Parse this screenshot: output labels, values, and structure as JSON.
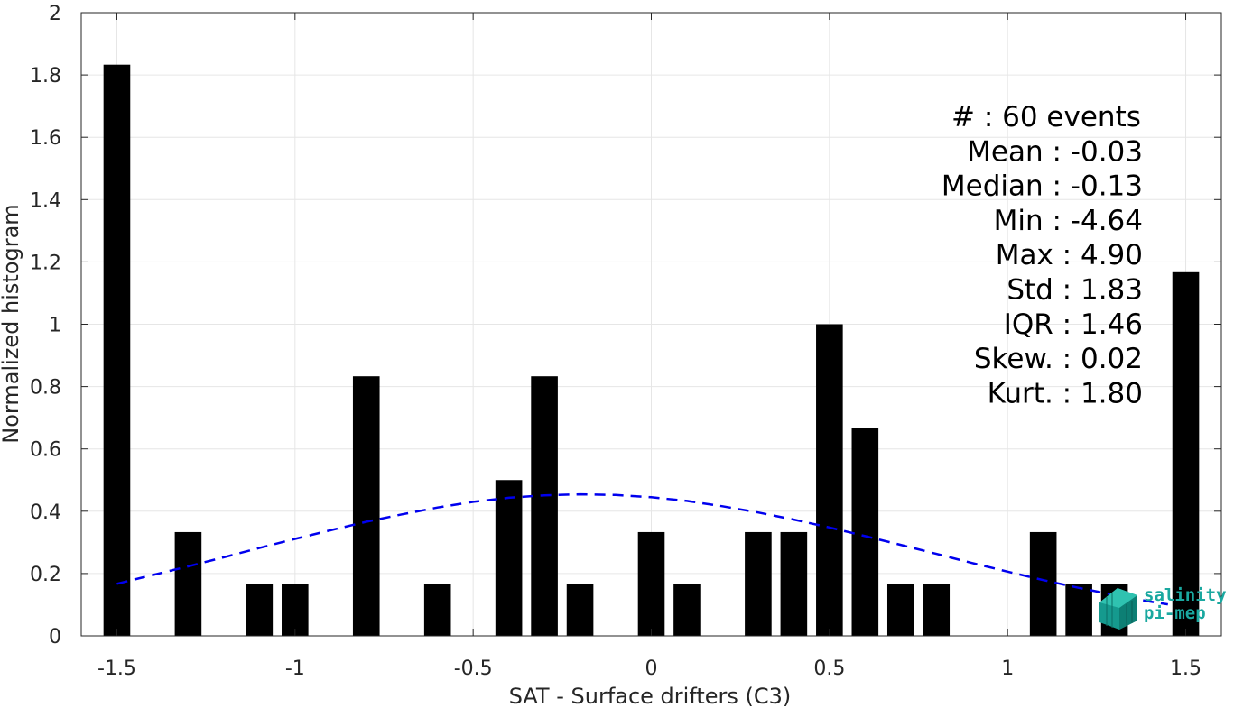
{
  "chart_data": {
    "type": "bar",
    "xlabel": "SAT - Surface drifters (C3)",
    "ylabel": "Normalized histogram",
    "xlim": [
      -1.6,
      1.6
    ],
    "ylim": [
      0,
      2
    ],
    "xticks": [
      -1.5,
      -1,
      -0.5,
      0,
      0.5,
      1,
      1.5
    ],
    "xtick_labels": [
      "-1.5",
      "-1",
      "-0.5",
      "0",
      "0.5",
      "1",
      "1.5"
    ],
    "yticks": [
      0,
      0.2,
      0.4,
      0.6,
      0.8,
      1,
      1.2,
      1.4,
      1.6,
      1.8,
      2
    ],
    "ytick_labels": [
      "0",
      "0.2",
      "0.4",
      "0.6",
      "0.8",
      "1",
      "1.2",
      "1.4",
      "1.6",
      "1.8",
      "2"
    ],
    "grid": true,
    "bar_width": 0.075,
    "bars": [
      {
        "x": -1.5,
        "value": 1.833
      },
      {
        "x": -1.3,
        "value": 0.333
      },
      {
        "x": -1.1,
        "value": 0.167
      },
      {
        "x": -1.0,
        "value": 0.167
      },
      {
        "x": -0.8,
        "value": 0.833
      },
      {
        "x": -0.6,
        "value": 0.167
      },
      {
        "x": -0.4,
        "value": 0.5
      },
      {
        "x": -0.3,
        "value": 0.833
      },
      {
        "x": -0.2,
        "value": 0.167
      },
      {
        "x": 0.0,
        "value": 0.333
      },
      {
        "x": 0.1,
        "value": 0.167
      },
      {
        "x": 0.3,
        "value": 0.333
      },
      {
        "x": 0.4,
        "value": 0.333
      },
      {
        "x": 0.5,
        "value": 1.0
      },
      {
        "x": 0.6,
        "value": 0.667
      },
      {
        "x": 0.7,
        "value": 0.167
      },
      {
        "x": 0.8,
        "value": 0.167
      },
      {
        "x": 1.1,
        "value": 0.333
      },
      {
        "x": 1.2,
        "value": 0.167
      },
      {
        "x": 1.3,
        "value": 0.167
      },
      {
        "x": 1.5,
        "value": 1.167
      }
    ],
    "fit_curve": {
      "style": "dashed",
      "color": "#0000ee",
      "x": [
        -1.5,
        -1.4,
        -1.3,
        -1.2,
        -1.1,
        -1.0,
        -0.9,
        -0.8,
        -0.7,
        -0.6,
        -0.5,
        -0.4,
        -0.3,
        -0.2,
        -0.1,
        0.0,
        0.1,
        0.2,
        0.3,
        0.4,
        0.5,
        0.6,
        0.7,
        0.8,
        0.9,
        1.0,
        1.1,
        1.2,
        1.3,
        1.4,
        1.45
      ],
      "y": [
        0.167,
        0.195,
        0.223,
        0.252,
        0.282,
        0.311,
        0.339,
        0.366,
        0.39,
        0.412,
        0.43,
        0.443,
        0.451,
        0.454,
        0.452,
        0.445,
        0.433,
        0.416,
        0.396,
        0.373,
        0.348,
        0.32,
        0.292,
        0.263,
        0.234,
        0.206,
        0.179,
        0.154,
        0.131,
        0.11,
        0.101
      ]
    },
    "stats": [
      "#  : 60 events",
      "Mean : -0.03",
      "Median : -0.13",
      "Min : -4.64",
      "Max : 4.90",
      "Std : 1.83",
      "IQR : 1.46",
      "Skew. : 0.02",
      "Kurt. : 1.80"
    ],
    "stats_align": [
      "start",
      "end",
      "end",
      "end",
      "end",
      "end",
      "end",
      "end",
      "end"
    ]
  },
  "logo": {
    "line1": "salinity",
    "line2": "pi-mep",
    "color": "#1aa8a0"
  }
}
